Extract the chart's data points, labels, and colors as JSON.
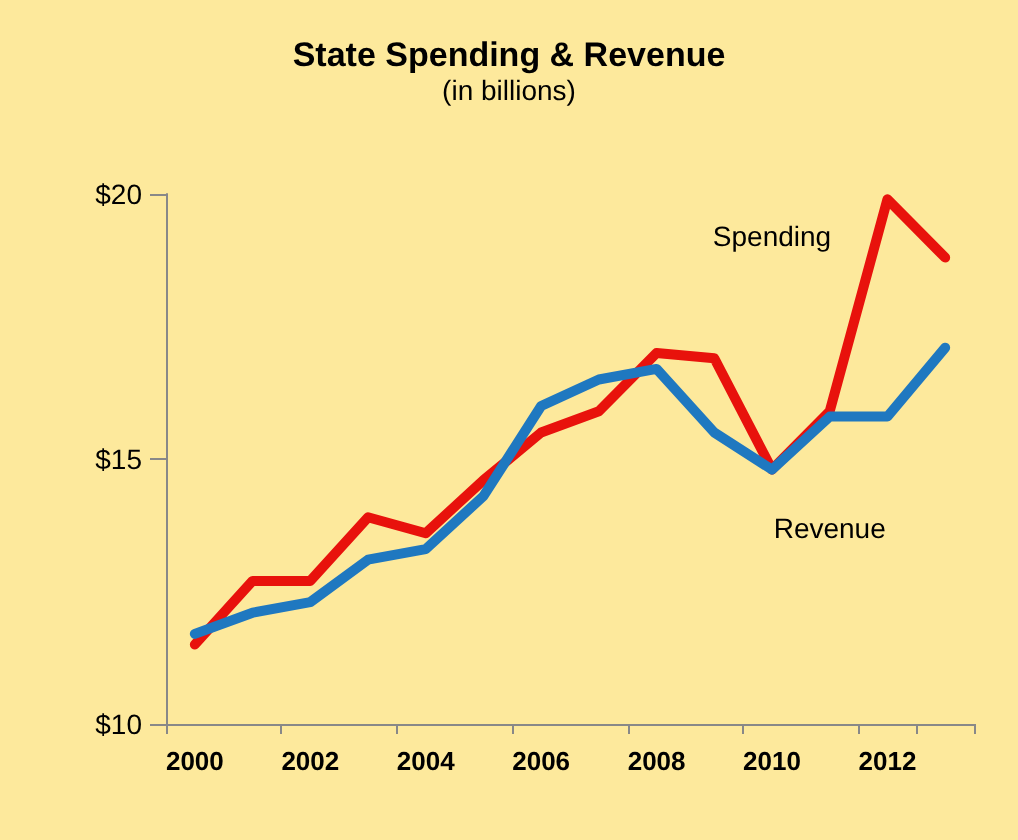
{
  "chart_data": {
    "type": "line",
    "title": "State Spending & Revenue",
    "subtitle": "(in billions)",
    "categories": [
      "2000",
      null,
      "2002",
      null,
      "2004",
      null,
      "2006",
      null,
      "2008",
      null,
      "2010",
      null,
      "2012",
      null
    ],
    "series": [
      {
        "name": "Spending",
        "color": "#e8120c",
        "values": [
          11.5,
          12.7,
          12.7,
          13.9,
          13.6,
          14.6,
          15.5,
          15.9,
          17.0,
          16.9,
          14.8,
          15.9,
          19.9,
          18.8
        ]
      },
      {
        "name": "Revenue",
        "color": "#1f78c0",
        "values": [
          11.7,
          12.1,
          12.3,
          13.1,
          13.3,
          14.3,
          16.0,
          16.5,
          16.7,
          15.5,
          14.8,
          15.8,
          15.8,
          17.1
        ]
      }
    ],
    "ylim": [
      10,
      20
    ],
    "yticks": [
      {
        "value": 10,
        "label": "$10"
      },
      {
        "value": 15,
        "label": "$15"
      },
      {
        "value": 20,
        "label": "$20"
      }
    ],
    "grid": false,
    "legend": false,
    "marker": "none",
    "line_style": "solid"
  }
}
